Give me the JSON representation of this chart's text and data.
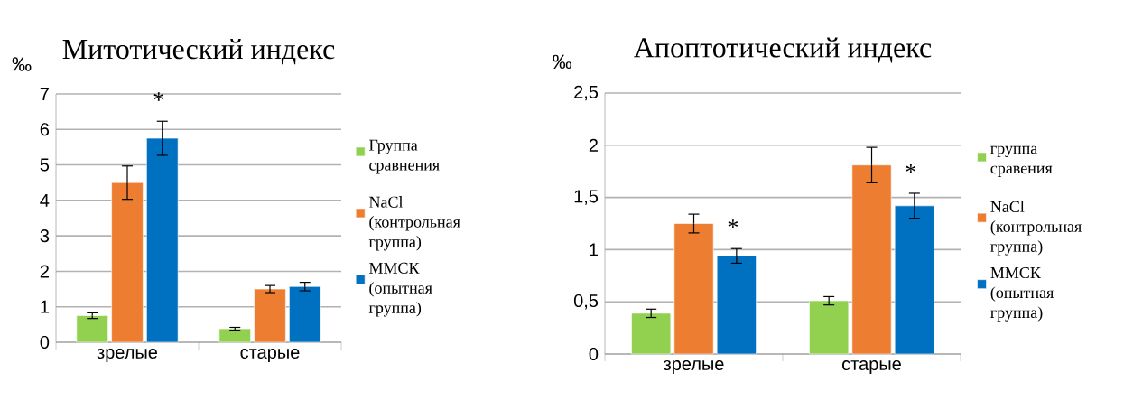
{
  "chart_data": [
    {
      "type": "bar",
      "title": "Митотический индекс",
      "ylabel": "‰",
      "categories": [
        "зрелые",
        "старые"
      ],
      "series": [
        {
          "name": "Группа сравнения",
          "color": "#92d050",
          "values": [
            0.75,
            0.38
          ],
          "errors": [
            0.08,
            0.04
          ]
        },
        {
          "name": "NaCl (контрольная группа)",
          "color": "#ed7d31",
          "values": [
            4.5,
            1.5
          ],
          "errors": [
            0.47,
            0.1
          ]
        },
        {
          "name": "ММСК (опытная группа)",
          "color": "#0070c0",
          "values": [
            5.75,
            1.57
          ],
          "errors": [
            0.48,
            0.12
          ]
        }
      ],
      "ylim": [
        0,
        7
      ],
      "yticks": [
        0,
        1,
        2,
        3,
        4,
        5,
        6,
        7
      ],
      "grid": "y",
      "legend": "right",
      "annotations": [
        "*"
      ]
    },
    {
      "type": "bar",
      "title": "Апоптотический индекс",
      "ylabel": "‰",
      "categories": [
        "зрелые",
        "старые"
      ],
      "series": [
        {
          "name": "группа сравения",
          "color": "#92d050",
          "values": [
            0.39,
            0.51
          ],
          "errors": [
            0.04,
            0.04
          ]
        },
        {
          "name": "NaCl (контрольная группа)",
          "color": "#ed7d31",
          "values": [
            1.25,
            1.81
          ],
          "errors": [
            0.09,
            0.17
          ]
        },
        {
          "name": "ММСК (опытная группа)",
          "color": "#0070c0",
          "values": [
            0.94,
            1.42
          ],
          "errors": [
            0.07,
            0.12
          ]
        }
      ],
      "ylim": [
        0,
        2.5
      ],
      "yticks": [
        0,
        {
          "value": 0.5,
          "label": "0,5"
        },
        1,
        {
          "value": 1.5,
          "label": "1,5"
        },
        2,
        {
          "value": 2.5,
          "label": "2,5"
        }
      ],
      "grid": "y",
      "legend": "right",
      "annotations": [
        "*",
        "*"
      ]
    }
  ]
}
